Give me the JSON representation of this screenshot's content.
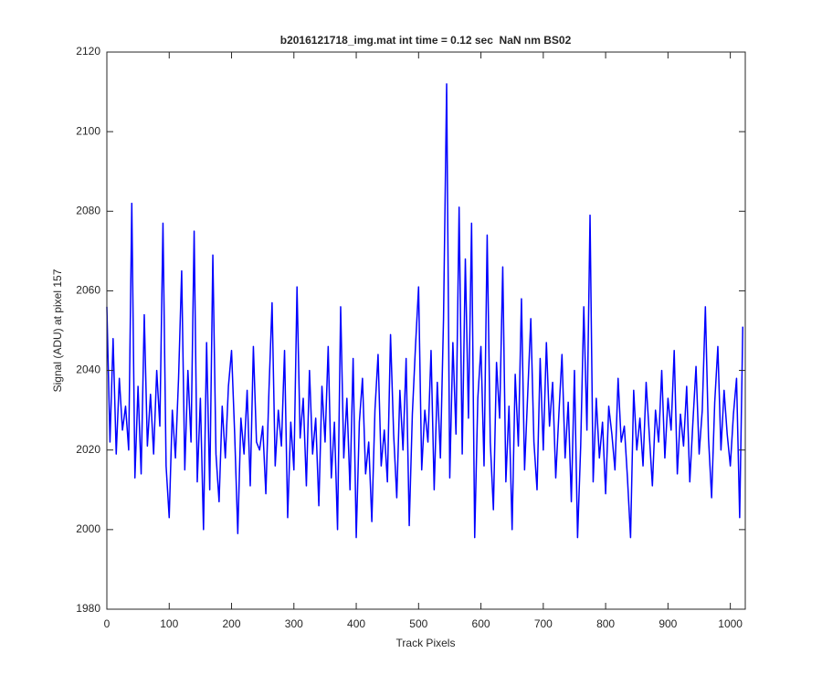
{
  "chart_data": {
    "type": "line",
    "title": "b2016121718_img.mat int time = 0.12 sec  NaN nm BS02",
    "xlabel": "Track Pixels",
    "ylabel": "Signal (ADU) at pixel 157",
    "color": "#0000ff",
    "x": [
      0,
      5,
      10,
      15,
      20,
      25,
      30,
      35,
      40,
      45,
      50,
      55,
      60,
      65,
      70,
      75,
      80,
      85,
      90,
      95,
      100,
      105,
      110,
      115,
      120,
      125,
      130,
      135,
      140,
      145,
      150,
      155,
      160,
      165,
      170,
      175,
      180,
      185,
      190,
      195,
      200,
      205,
      210,
      215,
      220,
      225,
      230,
      235,
      240,
      245,
      250,
      255,
      260,
      265,
      270,
      275,
      280,
      285,
      290,
      295,
      300,
      305,
      310,
      315,
      320,
      325,
      330,
      335,
      340,
      345,
      350,
      355,
      360,
      365,
      370,
      375,
      380,
      385,
      390,
      395,
      400,
      405,
      410,
      415,
      420,
      425,
      430,
      435,
      440,
      445,
      450,
      455,
      460,
      465,
      470,
      475,
      480,
      485,
      490,
      495,
      500,
      505,
      510,
      515,
      520,
      525,
      530,
      535,
      540,
      545,
      550,
      555,
      560,
      565,
      570,
      575,
      580,
      585,
      590,
      595,
      600,
      605,
      610,
      615,
      620,
      625,
      630,
      635,
      640,
      645,
      650,
      655,
      660,
      665,
      670,
      675,
      680,
      685,
      690,
      695,
      700,
      705,
      710,
      715,
      720,
      725,
      730,
      735,
      740,
      745,
      750,
      755,
      760,
      765,
      770,
      775,
      780,
      785,
      790,
      795,
      800,
      805,
      810,
      815,
      820,
      825,
      830,
      835,
      840,
      845,
      850,
      855,
      860,
      865,
      870,
      875,
      880,
      885,
      890,
      895,
      900,
      905,
      910,
      915,
      920,
      925,
      930,
      935,
      940,
      945,
      950,
      955,
      960,
      965,
      970,
      975,
      980,
      985,
      990,
      995,
      1000,
      1005,
      1010,
      1015,
      1020
    ],
    "values": [
      2056,
      2022,
      2048,
      2019,
      2038,
      2025,
      2031,
      2020,
      2082,
      2013,
      2036,
      2014,
      2054,
      2021,
      2034,
      2019,
      2040,
      2026,
      2077,
      2016,
      2003,
      2030,
      2018,
      2038,
      2065,
      2015,
      2040,
      2022,
      2075,
      2012,
      2033,
      2000,
      2047,
      2010,
      2069,
      2019,
      2007,
      2031,
      2018,
      2036,
      2045,
      2024,
      1999,
      2028,
      2019,
      2035,
      2011,
      2046,
      2022,
      2020,
      2026,
      2009,
      2035,
      2057,
      2016,
      2030,
      2021,
      2045,
      2003,
      2027,
      2015,
      2061,
      2023,
      2033,
      2011,
      2040,
      2019,
      2028,
      2006,
      2036,
      2022,
      2046,
      2013,
      2027,
      2000,
      2056,
      2018,
      2033,
      2010,
      2043,
      1998,
      2027,
      2038,
      2014,
      2022,
      2002,
      2030,
      2044,
      2016,
      2025,
      2012,
      2049,
      2024,
      2008,
      2035,
      2020,
      2043,
      2001,
      2029,
      2046,
      2061,
      2015,
      2030,
      2022,
      2045,
      2010,
      2037,
      2018,
      2053,
      2112,
      2013,
      2047,
      2024,
      2081,
      2019,
      2068,
      2028,
      2077,
      1998,
      2033,
      2046,
      2016,
      2074,
      2022,
      2005,
      2042,
      2028,
      2066,
      2012,
      2031,
      2000,
      2039,
      2021,
      2058,
      2015,
      2034,
      2053,
      2022,
      2010,
      2043,
      2020,
      2047,
      2026,
      2037,
      2013,
      2029,
      2044,
      2018,
      2032,
      2007,
      2040,
      1998,
      2021,
      2056,
      2025,
      2079,
      2012,
      2033,
      2018,
      2027,
      2009,
      2031,
      2024,
      2015,
      2038,
      2022,
      2026,
      2013,
      1998,
      2035,
      2020,
      2028,
      2016,
      2037,
      2024,
      2011,
      2030,
      2022,
      2040,
      2018,
      2033,
      2025,
      2045,
      2014,
      2029,
      2021,
      2036,
      2012,
      2027,
      2041,
      2019,
      2030,
      2056,
      2023,
      2008,
      2032,
      2046,
      2020,
      2035,
      2024,
      2016,
      2029,
      2038,
      2003,
      2051
    ],
    "xlim": [
      0,
      1024
    ],
    "ylim": [
      1980,
      2120
    ],
    "xticks": [
      0,
      100,
      200,
      300,
      400,
      500,
      600,
      700,
      800,
      900,
      1000
    ],
    "yticks": [
      1980,
      2000,
      2020,
      2040,
      2060,
      2080,
      2100,
      2120
    ]
  }
}
